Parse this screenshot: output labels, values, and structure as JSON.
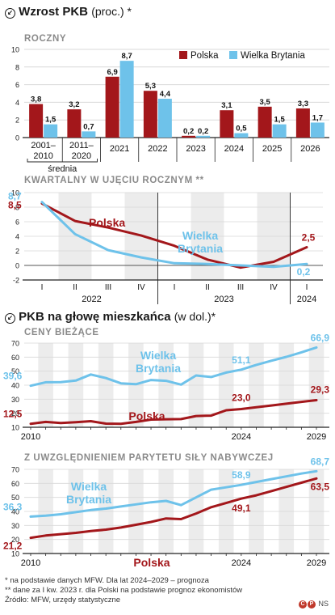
{
  "section1": {
    "title": "Wzrost PKB",
    "subtitle": "(proc.) *"
  },
  "section2": {
    "title": "PKB na głowę mieszkańca",
    "subtitle": "(w dol.)*"
  },
  "chart_data": [
    {
      "type": "bar",
      "subtitle": "ROCZNY",
      "categories": [
        "2001–2010",
        "2011–2020",
        "2021",
        "2022",
        "2023",
        "2024",
        "2025",
        "2026"
      ],
      "bracket_label": "średnia",
      "ylim": [
        0,
        10
      ],
      "yticks": [
        0,
        2,
        4,
        6,
        8,
        10
      ],
      "series": [
        {
          "name": "Polska",
          "color": "#a3171b",
          "values": [
            3.8,
            3.2,
            6.9,
            5.3,
            0.2,
            3.1,
            3.5,
            3.3
          ],
          "labels": [
            "3,8",
            "3,2",
            "6,9",
            "5,3",
            "0,2",
            "3,1",
            "3,5",
            "3,3"
          ]
        },
        {
          "name": "Wielka Brytania",
          "color": "#6ec2ea",
          "values": [
            1.5,
            0.7,
            8.7,
            4.4,
            0.2,
            0.5,
            1.5,
            1.7
          ],
          "labels": [
            "1,5",
            "0,7",
            "8,7",
            "4,4",
            "0,2",
            "0,5",
            "1,5",
            "1,7"
          ]
        }
      ],
      "legend_position": "top-right"
    },
    {
      "type": "line",
      "subtitle": "KWARTALNY W UJĘCIU ROCZNYM **",
      "ylim": [
        -2,
        10
      ],
      "yticks": [
        -2,
        0,
        2,
        4,
        6,
        8,
        10
      ],
      "quarter_labels": [
        "I",
        "II",
        "III",
        "IV",
        "I",
        "II",
        "III",
        "IV",
        "I"
      ],
      "year_labels": [
        "2022",
        "2023",
        "2024"
      ],
      "series": [
        {
          "name": "Polska",
          "color": "#a3171b",
          "values": [
            8.5,
            6.1,
            5.2,
            4.1,
            2.7,
            0.8,
            -0.3,
            0.5,
            2.5
          ],
          "start_label": "8,5",
          "end_label": "2,5"
        },
        {
          "name": "Wielka Brytania",
          "name_lines": [
            "Wielka",
            "Brytania"
          ],
          "color": "#6ec2ea",
          "values": [
            8.7,
            4.3,
            2.1,
            1.1,
            0.3,
            0.2,
            0.0,
            -0.2,
            0.2
          ],
          "start_label": "8,7",
          "end_label": "0,2"
        }
      ]
    },
    {
      "type": "line",
      "subtitle": "CENY BIEŻĄCE",
      "x": [
        2010,
        2011,
        2012,
        2013,
        2014,
        2015,
        2016,
        2017,
        2018,
        2019,
        2020,
        2021,
        2022,
        2023,
        2024,
        2025,
        2026,
        2027,
        2028,
        2029
      ],
      "xtick_labels": [
        "2010",
        "2024",
        "2029"
      ],
      "ylim": [
        10,
        70
      ],
      "yticks": [
        10,
        20,
        30,
        40,
        50,
        60,
        70
      ],
      "series": [
        {
          "name": "Wielka Brytania",
          "name_lines": [
            "Wielka",
            "Brytania"
          ],
          "color": "#6ec2ea",
          "values": [
            39.6,
            42.1,
            42.2,
            43.3,
            47.6,
            45.1,
            41.3,
            40.7,
            43.7,
            43.1,
            40.4,
            46.9,
            45.8,
            49.0,
            51.1,
            54.5,
            57.4,
            60.2,
            63.4,
            66.9
          ],
          "point_labels": [
            {
              "index": 0,
              "text": "39,6"
            },
            {
              "index": 14,
              "text": "51,1"
            },
            {
              "index": 19,
              "text": "66,9"
            }
          ]
        },
        {
          "name": "Polska",
          "color": "#a3171b",
          "values": [
            12.5,
            13.8,
            13.0,
            13.6,
            14.3,
            12.6,
            12.4,
            13.8,
            15.5,
            15.7,
            15.8,
            18.0,
            18.3,
            22.1,
            23.0,
            24.3,
            25.5,
            26.8,
            28.1,
            29.3
          ],
          "point_labels": [
            {
              "index": 0,
              "text": "12,5"
            },
            {
              "index": 14,
              "text": "23,0"
            },
            {
              "index": 19,
              "text": "29,3"
            }
          ]
        }
      ]
    },
    {
      "type": "line",
      "subtitle": "Z UWZGLĘDNIENIEM PARYTETU SIŁY NABYWCZEJ",
      "x": [
        2010,
        2011,
        2012,
        2013,
        2014,
        2015,
        2016,
        2017,
        2018,
        2019,
        2020,
        2021,
        2022,
        2023,
        2024,
        2025,
        2026,
        2027,
        2028,
        2029
      ],
      "xtick_labels": [
        "2010",
        "2024",
        "2029"
      ],
      "ylim": [
        10,
        70
      ],
      "yticks": [
        10,
        20,
        30,
        40,
        50,
        60,
        70
      ],
      "series": [
        {
          "name": "Wielka Brytania",
          "name_lines": [
            "Wielka",
            "Brytania"
          ],
          "color": "#6ec2ea",
          "values": [
            36.3,
            37.0,
            38.0,
            39.5,
            41.0,
            42.0,
            43.5,
            45.0,
            46.5,
            47.5,
            44.5,
            50.0,
            55.5,
            57.2,
            58.9,
            61.0,
            63.0,
            65.0,
            67.0,
            68.7
          ],
          "point_labels": [
            {
              "index": 0,
              "text": "36,3"
            },
            {
              "index": 14,
              "text": "58,9"
            },
            {
              "index": 19,
              "text": "68,7"
            }
          ]
        },
        {
          "name": "Polska",
          "color": "#a3171b",
          "values": [
            21.2,
            22.8,
            23.8,
            24.7,
            26.0,
            27.0,
            28.5,
            30.5,
            32.5,
            35.0,
            34.5,
            38.5,
            43.0,
            46.0,
            49.1,
            51.5,
            54.5,
            57.5,
            60.5,
            63.5
          ],
          "point_labels": [
            {
              "index": 0,
              "text": "21,2"
            },
            {
              "index": 14,
              "text": "49,1"
            },
            {
              "index": 19,
              "text": "63,5"
            }
          ]
        }
      ]
    }
  ],
  "footnotes": [
    "* na podstawie danych MFW. Dla lat 2024–2029 – prognoza",
    "** dane za I kw. 2023 r. dla Polski na podstawie prognoz ekonomistów",
    "Źródło: MFW, urzędy statystyczne"
  ],
  "credit": "NS"
}
